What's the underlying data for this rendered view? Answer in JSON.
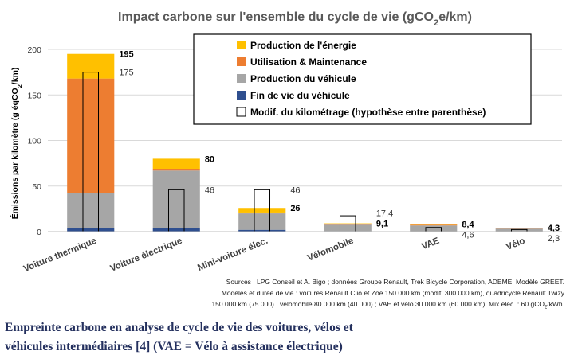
{
  "chart_data": {
    "type": "bar",
    "title": "Impact carbone sur l'ensemble du cycle de vie (gCO2e/km)",
    "ylabel": "Émissions par kilomètre (g éqCO2/km)",
    "xlabel": "",
    "ylim": [
      0,
      200
    ],
    "yticks": [
      "0",
      "50",
      "100",
      "150",
      "200"
    ],
    "grid": true,
    "legend_position": "top-right",
    "categories": [
      "Voiture thermique",
      "Voiture électrique",
      "Mini-voiture élec.",
      "Vélomobile",
      "VAE",
      "Vélo"
    ],
    "series": [
      {
        "name": "Production de l'énergie",
        "color": "#ffc000",
        "values": [
          27,
          11,
          5,
          0.7,
          0.8,
          0.4
        ]
      },
      {
        "name": "Utilisation & Maintenance",
        "color": "#ed7d31",
        "values": [
          126,
          2,
          1,
          0.8,
          0.8,
          0.6
        ]
      },
      {
        "name": "Production du véhicule",
        "color": "#a6a6a6",
        "values": [
          38,
          63,
          18,
          7.1,
          6.4,
          3.0
        ]
      },
      {
        "name": "Fin de vie du véhicule",
        "color": "#2f4f8f",
        "values": [
          4,
          4,
          2,
          0.5,
          0.4,
          0.3
        ]
      }
    ],
    "outline_series": {
      "name": "Modif. du kilométrage (hypothèse entre parenthèse)",
      "values": [
        175,
        46,
        46,
        17.4,
        4.6,
        2.3
      ]
    },
    "total_labels": [
      "195",
      "80",
      "26",
      "9,1",
      "8,4",
      "4,3"
    ],
    "outline_labels": [
      "175",
      "46",
      "46",
      "17,4",
      "4,6",
      "2,3"
    ]
  },
  "sources": [
    "Sources : LPG Conseil et A. Bigo ; données Groupe Renault, Trek Bicycle Corporation, ADEME, Modèle GREET.",
    "Modèles et durée de vie : voitures Renault Clio et Zoé 150 000 km (modif. 300 000 km), quadricycle Renault Twizy",
    "150 000 km (75 000) ; vélomobile 80 000 km (40 000) ; VAE et vélo 30 000 km (60 000 km). Mix élec. : 60 gCO2/kWh."
  ],
  "caption": {
    "line1": "Empreinte carbone en analyse de cycle de vie des voitures, vélos et",
    "line2": "véhicules intermédiaires [4] (VAE = Vélo à assistance électrique)"
  }
}
